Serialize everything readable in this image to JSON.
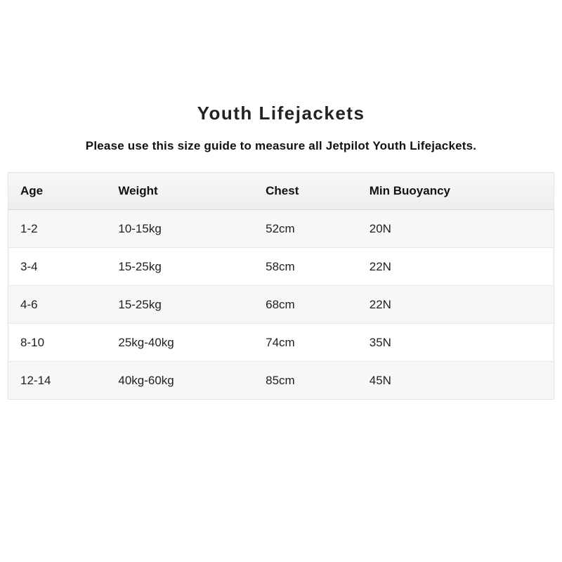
{
  "page": {
    "title": "Youth Lifejackets",
    "subtitle": "Please use this size guide to measure all Jetpilot Youth Lifejackets."
  },
  "size_guide_table": {
    "columns": [
      "Age",
      "Weight",
      "Chest",
      "Min Buoyancy"
    ],
    "rows": [
      [
        "1-2",
        "10-15kg",
        "52cm",
        "20N"
      ],
      [
        "3-4",
        "15-25kg",
        "58cm",
        "22N"
      ],
      [
        "4-6",
        "15-25kg",
        "68cm",
        "22N"
      ],
      [
        "8-10",
        "25kg-40kg",
        "74cm",
        "35N"
      ],
      [
        "12-14",
        "40kg-60kg",
        "85cm",
        "45N"
      ]
    ]
  },
  "colors": {
    "header_bg_top": "#f8f8f8",
    "header_bg_bottom": "#ededed",
    "row_alt_bg": "#f7f7f7",
    "row_bg": "#ffffff",
    "border": "#e2e2e2",
    "text": "#1f1f1f"
  }
}
